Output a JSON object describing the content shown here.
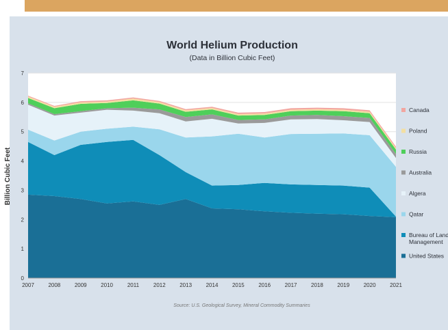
{
  "chart_data": {
    "type": "area",
    "stacked": true,
    "title": "World Helium Production",
    "subtitle": "(Data in Billion Cubic Feet)",
    "ylabel": "Billion Cubic Feet",
    "xlabel": "",
    "ylim": [
      0,
      7
    ],
    "yticks": [
      "0",
      "1",
      "2",
      "3",
      "4",
      "5",
      "6",
      "7"
    ],
    "categories": [
      "2007",
      "2008",
      "2009",
      "2010",
      "2011",
      "2012",
      "2013",
      "2014",
      "2015",
      "2016",
      "2017",
      "2018",
      "2019",
      "2020",
      "2021"
    ],
    "grid": "horizontal",
    "legend_position": "right",
    "series": [
      {
        "name": "United States",
        "color": "#1a6f96",
        "values": [
          2.85,
          2.8,
          2.7,
          2.55,
          2.62,
          2.5,
          2.7,
          2.38,
          2.35,
          2.28,
          2.23,
          2.2,
          2.18,
          2.12,
          2.08
        ]
      },
      {
        "name": "Bureau of Land Management",
        "color": "#0f8db8",
        "values": [
          1.8,
          1.4,
          1.85,
          2.1,
          2.1,
          1.7,
          0.92,
          0.78,
          0.83,
          0.97,
          0.97,
          0.98,
          0.98,
          0.97,
          0.02
        ]
      },
      {
        "name": "Qatar",
        "color": "#9ad6ec",
        "values": [
          0.42,
          0.5,
          0.45,
          0.45,
          0.45,
          0.88,
          1.18,
          1.68,
          1.75,
          1.55,
          1.72,
          1.75,
          1.78,
          1.79,
          1.7
        ]
      },
      {
        "name": "Algera",
        "color": "#e6f2f9",
        "values": [
          0.85,
          0.85,
          0.65,
          0.65,
          0.55,
          0.55,
          0.55,
          0.6,
          0.35,
          0.5,
          0.5,
          0.5,
          0.45,
          0.45,
          0.3
        ]
      },
      {
        "name": "Australia",
        "color": "#9a9a9a",
        "values": [
          0.05,
          0.05,
          0.05,
          0.05,
          0.1,
          0.13,
          0.15,
          0.15,
          0.12,
          0.12,
          0.13,
          0.14,
          0.14,
          0.14,
          0.14
        ]
      },
      {
        "name": "Russia",
        "color": "#4fcf5a",
        "values": [
          0.18,
          0.2,
          0.25,
          0.18,
          0.25,
          0.2,
          0.18,
          0.17,
          0.15,
          0.15,
          0.15,
          0.15,
          0.17,
          0.16,
          0.15
        ]
      },
      {
        "name": "Poland",
        "color": "#f3dfa2",
        "values": [
          0.05,
          0.05,
          0.05,
          0.05,
          0.06,
          0.05,
          0.05,
          0.05,
          0.05,
          0.05,
          0.05,
          0.05,
          0.05,
          0.05,
          0.05
        ]
      },
      {
        "name": "Canada",
        "color": "#f2a6a0",
        "values": [
          0.03,
          0.03,
          0.04,
          0.04,
          0.04,
          0.04,
          0.04,
          0.04,
          0.05,
          0.05,
          0.05,
          0.05,
          0.05,
          0.05,
          0.05
        ]
      }
    ],
    "source": "Source: U.S. Geological Survey, Mineral Commodity Summaries"
  },
  "legend_order": [
    "Canada",
    "Poland",
    "Russia",
    "Australia",
    "Algera",
    "Qatar",
    "Bureau of Land Management",
    "United States"
  ],
  "legend_labels": {
    "Canada": [
      "Canada"
    ],
    "Poland": [
      "Poland"
    ],
    "Russia": [
      "Russia"
    ],
    "Australia": [
      "Australia"
    ],
    "Algera": [
      "Algera"
    ],
    "Qatar": [
      "Qatar"
    ],
    "Bureau of Land Management": [
      "Bureau of Land",
      "Management"
    ],
    "United States": [
      "United States"
    ]
  }
}
